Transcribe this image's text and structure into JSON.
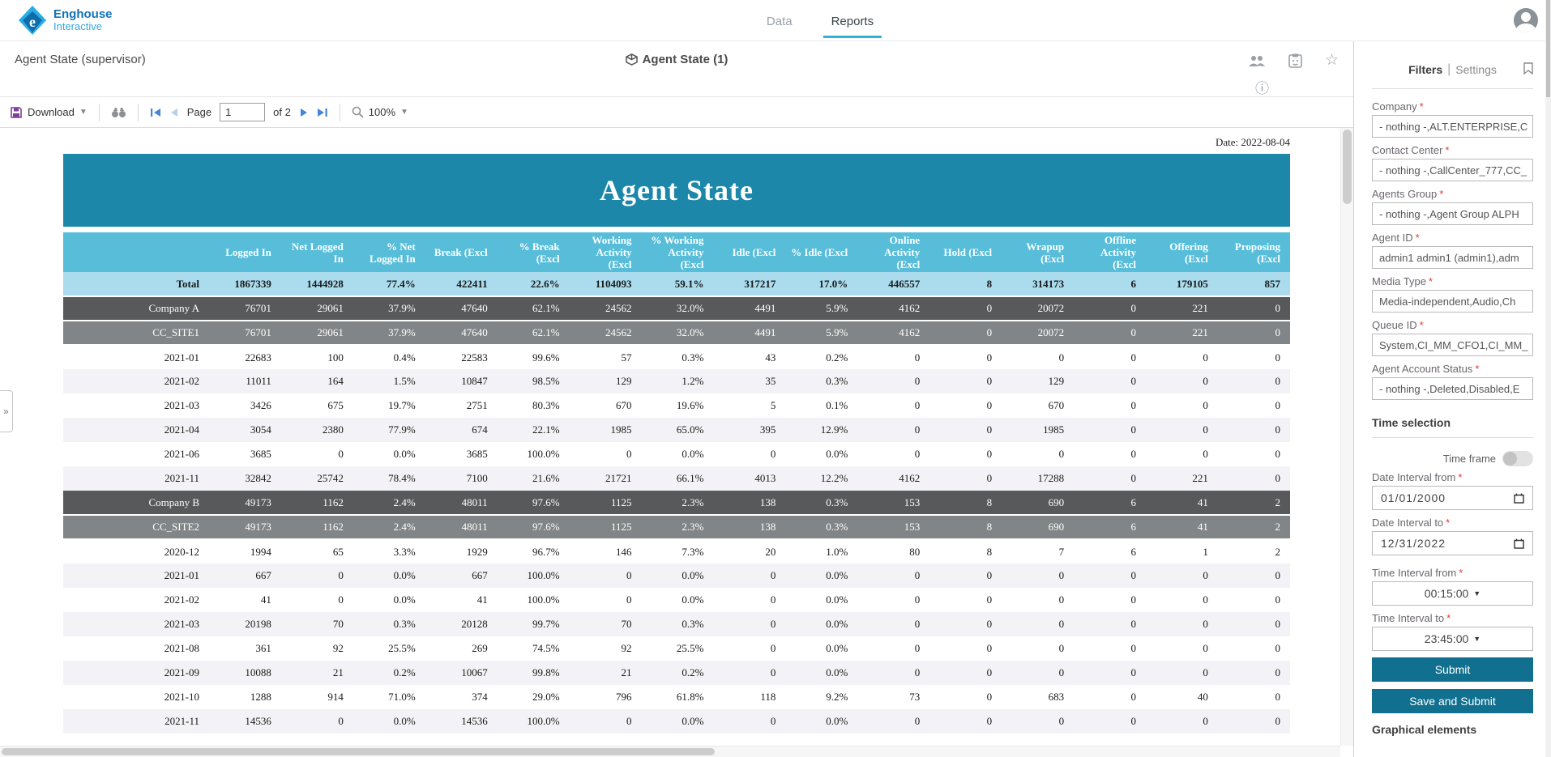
{
  "header": {
    "brand": {
      "name": "Enghouse",
      "sub": "Interactive"
    },
    "tabs": [
      {
        "label": "Data",
        "active": false
      },
      {
        "label": "Reports",
        "active": true
      }
    ]
  },
  "report_bar": {
    "title": "Agent State (supervisor)",
    "center_label": "Agent State (1)",
    "icons": [
      "people-icon",
      "clipboard-icon",
      "star-icon",
      "info-icon"
    ]
  },
  "toolbar": {
    "download_label": "Download",
    "page_label": "Page",
    "page_value": "1",
    "of_label": "of 2",
    "zoom_label": "100%"
  },
  "report": {
    "date_label": "Date: 2022-08-04",
    "title": "Agent State",
    "columns": [
      "Logged In",
      "Net Logged In",
      "% Net Logged In",
      "Break (Excl",
      "% Break (Excl",
      "Working Activity (Excl",
      "% Working Activity (Excl",
      "Idle (Excl",
      "% Idle (Excl",
      "Online Activity (Excl",
      "Hold (Excl",
      "Wrapup (Excl",
      "Offline Activity (Excl",
      "Offering (Excl",
      "Proposing (Excl"
    ],
    "rows": [
      {
        "type": "total",
        "label": "Total",
        "values": [
          "1867339",
          "1444928",
          "77.4%",
          "422411",
          "22.6%",
          "1104093",
          "59.1%",
          "317217",
          "17.0%",
          "446557",
          "8",
          "314173",
          "6",
          "179105",
          "857"
        ]
      },
      {
        "type": "company",
        "label": "Company A",
        "values": [
          "76701",
          "29061",
          "37.9%",
          "47640",
          "62.1%",
          "24562",
          "32.0%",
          "4491",
          "5.9%",
          "4162",
          "0",
          "20072",
          "0",
          "221",
          "0"
        ]
      },
      {
        "type": "site",
        "label": "CC_SITE1",
        "values": [
          "76701",
          "29061",
          "37.9%",
          "47640",
          "62.1%",
          "24562",
          "32.0%",
          "4491",
          "5.9%",
          "4162",
          "0",
          "20072",
          "0",
          "221",
          "0"
        ]
      },
      {
        "type": "month",
        "label": "2021-01",
        "values": [
          "22683",
          "100",
          "0.4%",
          "22583",
          "99.6%",
          "57",
          "0.3%",
          "43",
          "0.2%",
          "0",
          "0",
          "0",
          "0",
          "0",
          "0"
        ]
      },
      {
        "type": "month",
        "label": "2021-02",
        "values": [
          "11011",
          "164",
          "1.5%",
          "10847",
          "98.5%",
          "129",
          "1.2%",
          "35",
          "0.3%",
          "0",
          "0",
          "129",
          "0",
          "0",
          "0"
        ]
      },
      {
        "type": "month",
        "label": "2021-03",
        "values": [
          "3426",
          "675",
          "19.7%",
          "2751",
          "80.3%",
          "670",
          "19.6%",
          "5",
          "0.1%",
          "0",
          "0",
          "670",
          "0",
          "0",
          "0"
        ]
      },
      {
        "type": "month",
        "label": "2021-04",
        "values": [
          "3054",
          "2380",
          "77.9%",
          "674",
          "22.1%",
          "1985",
          "65.0%",
          "395",
          "12.9%",
          "0",
          "0",
          "1985",
          "0",
          "0",
          "0"
        ]
      },
      {
        "type": "month",
        "label": "2021-06",
        "values": [
          "3685",
          "0",
          "0.0%",
          "3685",
          "100.0%",
          "0",
          "0.0%",
          "0",
          "0.0%",
          "0",
          "0",
          "0",
          "0",
          "0",
          "0"
        ]
      },
      {
        "type": "month",
        "label": "2021-11",
        "values": [
          "32842",
          "25742",
          "78.4%",
          "7100",
          "21.6%",
          "21721",
          "66.1%",
          "4013",
          "12.2%",
          "4162",
          "0",
          "17288",
          "0",
          "221",
          "0"
        ]
      },
      {
        "type": "company",
        "label": "Company B",
        "values": [
          "49173",
          "1162",
          "2.4%",
          "48011",
          "97.6%",
          "1125",
          "2.3%",
          "138",
          "0.3%",
          "153",
          "8",
          "690",
          "6",
          "41",
          "2"
        ]
      },
      {
        "type": "site",
        "label": "CC_SITE2",
        "values": [
          "49173",
          "1162",
          "2.4%",
          "48011",
          "97.6%",
          "1125",
          "2.3%",
          "138",
          "0.3%",
          "153",
          "8",
          "690",
          "6",
          "41",
          "2"
        ]
      },
      {
        "type": "month",
        "label": "2020-12",
        "values": [
          "1994",
          "65",
          "3.3%",
          "1929",
          "96.7%",
          "146",
          "7.3%",
          "20",
          "1.0%",
          "80",
          "8",
          "7",
          "6",
          "1",
          "2"
        ]
      },
      {
        "type": "month",
        "label": "2021-01",
        "values": [
          "667",
          "0",
          "0.0%",
          "667",
          "100.0%",
          "0",
          "0.0%",
          "0",
          "0.0%",
          "0",
          "0",
          "0",
          "0",
          "0",
          "0"
        ]
      },
      {
        "type": "month",
        "label": "2021-02",
        "values": [
          "41",
          "0",
          "0.0%",
          "41",
          "100.0%",
          "0",
          "0.0%",
          "0",
          "0.0%",
          "0",
          "0",
          "0",
          "0",
          "0",
          "0"
        ]
      },
      {
        "type": "month",
        "label": "2021-03",
        "values": [
          "20198",
          "70",
          "0.3%",
          "20128",
          "99.7%",
          "70",
          "0.3%",
          "0",
          "0.0%",
          "0",
          "0",
          "0",
          "0",
          "0",
          "0"
        ]
      },
      {
        "type": "month",
        "label": "2021-08",
        "values": [
          "361",
          "92",
          "25.5%",
          "269",
          "74.5%",
          "92",
          "25.5%",
          "0",
          "0.0%",
          "0",
          "0",
          "0",
          "0",
          "0",
          "0"
        ]
      },
      {
        "type": "month",
        "label": "2021-09",
        "values": [
          "10088",
          "21",
          "0.2%",
          "10067",
          "99.8%",
          "21",
          "0.2%",
          "0",
          "0.0%",
          "0",
          "0",
          "0",
          "0",
          "0",
          "0"
        ]
      },
      {
        "type": "month",
        "label": "2021-10",
        "values": [
          "1288",
          "914",
          "71.0%",
          "374",
          "29.0%",
          "796",
          "61.8%",
          "118",
          "9.2%",
          "73",
          "0",
          "683",
          "0",
          "40",
          "0"
        ]
      },
      {
        "type": "month",
        "label": "2021-11",
        "values": [
          "14536",
          "0",
          "0.0%",
          "14536",
          "100.0%",
          "0",
          "0.0%",
          "0",
          "0.0%",
          "0",
          "0",
          "0",
          "0",
          "0",
          "0"
        ]
      }
    ]
  },
  "left_tab": {
    "collapse_glyph": "»"
  },
  "filters": {
    "title": "Filters",
    "pipe": "|",
    "settings_label": "Settings",
    "required_marker": "*",
    "fields": [
      {
        "label": "Company",
        "value": "- nothing -,ALT.ENTERPRISE,C"
      },
      {
        "label": "Contact Center",
        "value": "- nothing -,CallCenter_777,CC_"
      },
      {
        "label": "Agents Group",
        "value": "- nothing -,Agent Group ALPH"
      },
      {
        "label": "Agent ID",
        "value": "admin1 admin1 (admin1),adm"
      },
      {
        "label": "Media Type",
        "value": "Media-independent,Audio,Ch"
      },
      {
        "label": "Queue ID",
        "value": "System,CI_MM_CFO1,CI_MM_"
      },
      {
        "label": "Agent Account Status",
        "value": "- nothing -,Deleted,Disabled,E"
      }
    ],
    "time_selection": {
      "heading": "Time selection",
      "time_frame_label": "Time frame",
      "date_from": {
        "label": "Date Interval from",
        "value": "01/01/2000"
      },
      "date_to": {
        "label": "Date Interval to",
        "value": "12/31/2022"
      },
      "time_from": {
        "label": "Time Interval from",
        "value": "00:15:00"
      },
      "time_to": {
        "label": "Time Interval to",
        "value": "23:45:00"
      }
    },
    "submit_label": "Submit",
    "save_submit_label": "Save and Submit",
    "bottom_partial": "Graphical elements"
  }
}
